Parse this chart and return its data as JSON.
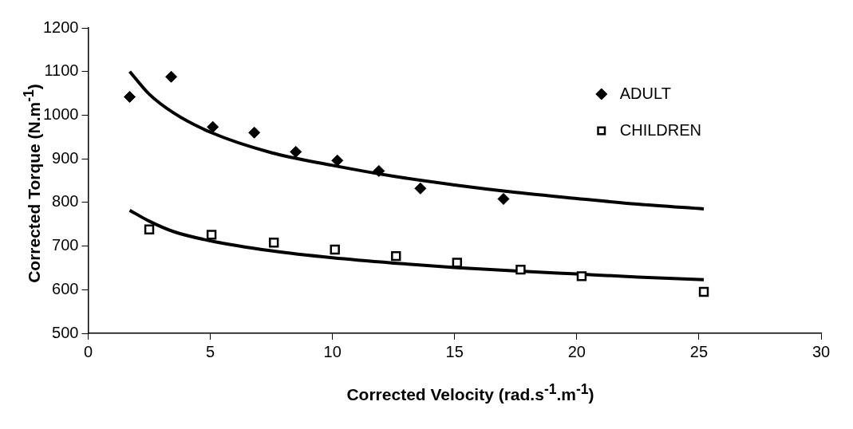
{
  "chart_data": {
    "type": "scatter",
    "xlabel": "Corrected Velocity (rad.s$^{-1}$.m$^{-1}$)",
    "ylabel": "Corrected Torque (N.m$^{-1}$)",
    "xlim": [
      0,
      30
    ],
    "xticks": [
      0,
      5,
      10,
      15,
      20,
      25,
      30
    ],
    "ylim": [
      500,
      1200
    ],
    "yticks": [
      500,
      600,
      700,
      800,
      900,
      1000,
      1100,
      1200
    ],
    "grid": false,
    "legend": "top right",
    "series": [
      {
        "name": "ADULT",
        "color": "#000000",
        "marker": "diamond",
        "x": [
          1.7,
          3.4,
          5.1,
          6.8,
          8.5,
          10.2,
          11.9,
          13.6,
          17
        ],
        "values": [
          1042,
          1088,
          973,
          960,
          916,
          896,
          872,
          832,
          808
        ]
      },
      {
        "name": "CHILDREN",
        "color": "#000000",
        "marker": "square",
        "x": [
          2.5,
          5.05,
          7.6,
          10.1,
          12.6,
          15.1,
          17.7,
          20.2,
          25.2
        ],
        "values": [
          738,
          726,
          708,
          692,
          677,
          662,
          646,
          631,
          595
        ]
      },
      {
        "type": "line",
        "color": "#000000",
        "marker": "none",
        "x": [
          1.7,
          2.5,
          3.5,
          5,
          7.5,
          10,
          12.5,
          15,
          17.5,
          20,
          22.5,
          25.2
        ],
        "values": [
          1100,
          1048,
          1005,
          961,
          914,
          885,
          860,
          840,
          823,
          809,
          796,
          785
        ]
      },
      {
        "type": "line",
        "color": "#000000",
        "marker": "none",
        "x": [
          1.7,
          2.5,
          3.5,
          5,
          7.5,
          10,
          12.5,
          15,
          17.5,
          20,
          22.5,
          25.2
        ],
        "values": [
          782,
          757,
          733,
          712,
          689,
          673,
          661,
          651,
          643,
          636,
          629,
          623
        ]
      }
    ]
  }
}
